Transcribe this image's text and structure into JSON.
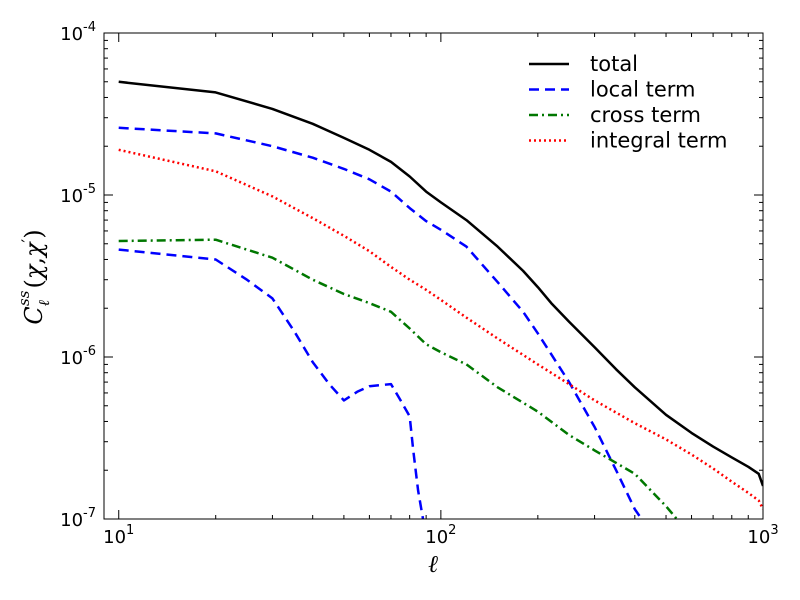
{
  "chart_data": {
    "type": "line",
    "title": "",
    "xlabel": "ℓ",
    "ylabel": "C_ℓ^{ss}(χ,χ′)",
    "xscale": "log",
    "yscale": "log",
    "xlim": [
      9,
      1000
    ],
    "ylim": [
      1e-07,
      0.0001
    ],
    "grid": false,
    "legend_position": "top-right",
    "x_ticks": [
      {
        "value": 10,
        "base": "10",
        "exp": "1"
      },
      {
        "value": 100,
        "base": "10",
        "exp": "2"
      },
      {
        "value": 1000,
        "base": "10",
        "exp": "3"
      }
    ],
    "y_ticks": [
      {
        "value": 1e-07,
        "base": "10",
        "exp": "-7"
      },
      {
        "value": 1e-06,
        "base": "10",
        "exp": "-6"
      },
      {
        "value": 1e-05,
        "base": "10",
        "exp": "-5"
      },
      {
        "value": 0.0001,
        "base": "10",
        "exp": "-4"
      }
    ],
    "series": [
      {
        "name": "total",
        "color": "#000000",
        "style": "solid",
        "points": [
          [
            10,
            5e-05
          ],
          [
            20,
            4.3e-05
          ],
          [
            30,
            3.4e-05
          ],
          [
            40,
            2.75e-05
          ],
          [
            50,
            2.25e-05
          ],
          [
            60,
            1.9e-05
          ],
          [
            70,
            1.6e-05
          ],
          [
            80,
            1.3e-05
          ],
          [
            90,
            1.05e-05
          ],
          [
            100,
            9e-06
          ],
          [
            110,
            7.9e-06
          ],
          [
            120,
            7e-06
          ],
          [
            150,
            4.8e-06
          ],
          [
            180,
            3.4e-06
          ],
          [
            200,
            2.7e-06
          ],
          [
            220,
            2.15e-06
          ],
          [
            250,
            1.65e-06
          ],
          [
            300,
            1.15e-06
          ],
          [
            350,
            8.4e-07
          ],
          [
            400,
            6.5e-07
          ],
          [
            500,
            4.4e-07
          ],
          [
            600,
            3.4e-07
          ],
          [
            700,
            2.8e-07
          ],
          [
            800,
            2.4e-07
          ],
          [
            900,
            2.1e-07
          ],
          [
            970,
            1.9e-07
          ],
          [
            1000,
            1.6e-07
          ]
        ]
      },
      {
        "name": "local term",
        "color": "#0000ff",
        "style": "dashed",
        "points": [
          [
            10,
            2.6e-05
          ],
          [
            20,
            2.4e-05
          ],
          [
            30,
            2e-05
          ],
          [
            40,
            1.7e-05
          ],
          [
            50,
            1.45e-05
          ],
          [
            60,
            1.25e-05
          ],
          [
            70,
            1.05e-05
          ],
          [
            80,
            8.3e-06
          ],
          [
            90,
            6.9e-06
          ],
          [
            100,
            6.1e-06
          ],
          [
            120,
            4.8e-06
          ],
          [
            150,
            2.9e-06
          ],
          [
            180,
            1.9e-06
          ],
          [
            200,
            1.4e-06
          ],
          [
            250,
            7e-07
          ],
          [
            300,
            3.7e-07
          ],
          [
            350,
            2e-07
          ],
          [
            400,
            1.15e-07
          ],
          [
            420,
            1e-07
          ]
        ]
      },
      {
        "name": "",
        "color": "#0000ff",
        "style": "dashed",
        "points": [
          [
            10,
            4.6e-06
          ],
          [
            20,
            4e-06
          ],
          [
            25,
            3e-06
          ],
          [
            30,
            2.3e-06
          ],
          [
            35,
            1.45e-06
          ],
          [
            40,
            9.3e-07
          ],
          [
            45,
            6.8e-07
          ],
          [
            50,
            5.4e-07
          ],
          [
            55,
            6.1e-07
          ],
          [
            60,
            6.6e-07
          ],
          [
            70,
            6.8e-07
          ],
          [
            75,
            5.4e-07
          ],
          [
            80,
            4.3e-07
          ],
          [
            82,
            2.7e-07
          ],
          [
            85,
            1.5e-07
          ],
          [
            88,
            1e-07
          ]
        ]
      },
      {
        "name": "cross term",
        "color": "#007700",
        "style": "dashdot",
        "points": [
          [
            10,
            5.2e-06
          ],
          [
            20,
            5.3e-06
          ],
          [
            30,
            4.1e-06
          ],
          [
            40,
            3e-06
          ],
          [
            50,
            2.45e-06
          ],
          [
            60,
            2.15e-06
          ],
          [
            70,
            1.9e-06
          ],
          [
            80,
            1.5e-06
          ],
          [
            90,
            1.2e-06
          ],
          [
            100,
            1.07e-06
          ],
          [
            120,
            9e-07
          ],
          [
            150,
            6.5e-07
          ],
          [
            200,
            4.6e-07
          ],
          [
            250,
            3.3e-07
          ],
          [
            300,
            2.65e-07
          ],
          [
            400,
            1.9e-07
          ],
          [
            500,
            1.2e-07
          ],
          [
            540,
            1e-07
          ]
        ]
      },
      {
        "name": "integral term",
        "color": "#ff0000",
        "style": "dotted",
        "points": [
          [
            10,
            1.9e-05
          ],
          [
            20,
            1.4e-05
          ],
          [
            30,
            9.8e-06
          ],
          [
            40,
            7.2e-06
          ],
          [
            50,
            5.6e-06
          ],
          [
            60,
            4.5e-06
          ],
          [
            70,
            3.6e-06
          ],
          [
            80,
            3e-06
          ],
          [
            90,
            2.6e-06
          ],
          [
            100,
            2.25e-06
          ],
          [
            120,
            1.75e-06
          ],
          [
            150,
            1.3e-06
          ],
          [
            200,
            9e-07
          ],
          [
            250,
            6.8e-07
          ],
          [
            300,
            5.4e-07
          ],
          [
            400,
            3.9e-07
          ],
          [
            500,
            3.1e-07
          ],
          [
            600,
            2.5e-07
          ],
          [
            700,
            2.05e-07
          ],
          [
            800,
            1.7e-07
          ],
          [
            900,
            1.45e-07
          ],
          [
            970,
            1.3e-07
          ],
          [
            1000,
            1.15e-07
          ]
        ]
      }
    ]
  }
}
